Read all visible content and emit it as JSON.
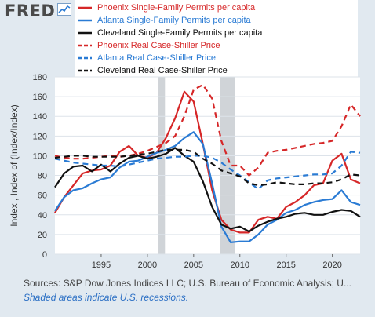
{
  "brand": {
    "logo_text": "FRED"
  },
  "footer": {
    "sources": "Sources: S&P Dow Jones Indices LLC; U.S. Bureau of Economic Analysis; U...",
    "note": "Shaded areas indicate U.S. recessions."
  },
  "colors": {
    "phoenix": "#d62728",
    "atlanta": "#2a7bd4",
    "cleveland": "#111111",
    "recession": "#d0d4d8"
  },
  "chart_data": {
    "type": "line",
    "ylabel": "Index , Index of (Index/Index)",
    "xlabel": "",
    "ylim": [
      0,
      180
    ],
    "xlim": [
      1990,
      2023
    ],
    "yticks": [
      0,
      20,
      40,
      60,
      80,
      100,
      120,
      140,
      160,
      180
    ],
    "xticks": [
      1995,
      2000,
      2005,
      2010,
      2015,
      2020
    ],
    "grid": true,
    "recessions": [
      [
        2001.2,
        2001.9
      ],
      [
        2007.9,
        2009.5
      ]
    ],
    "series": [
      {
        "name": "Phoenix Single-Family Permits per capita",
        "color": "#d62728",
        "dash": "solid",
        "x": [
          1990,
          1991,
          1992,
          1993,
          1994,
          1995,
          1996,
          1997,
          1998,
          1999,
          2000,
          2001,
          2002,
          2003,
          2004,
          2005,
          2006,
          2007,
          2008,
          2009,
          2010,
          2011,
          2012,
          2013,
          2014,
          2015,
          2016,
          2017,
          2018,
          2019,
          2020,
          2021,
          2022,
          2023
        ],
        "y": [
          42,
          58,
          70,
          82,
          85,
          86,
          90,
          104,
          110,
          100,
          98,
          103,
          118,
          138,
          165,
          155,
          112,
          65,
          35,
          25,
          22,
          22,
          35,
          38,
          36,
          48,
          53,
          60,
          70,
          72,
          95,
          102,
          76,
          72
        ]
      },
      {
        "name": "Atlanta Single-Family Permits per capita",
        "color": "#2a7bd4",
        "dash": "solid",
        "x": [
          1990,
          1991,
          1992,
          1993,
          1994,
          1995,
          1996,
          1997,
          1998,
          1999,
          2000,
          2001,
          2002,
          2003,
          2004,
          2005,
          2006,
          2007,
          2008,
          2009,
          2010,
          2011,
          2012,
          2013,
          2014,
          2015,
          2016,
          2017,
          2018,
          2019,
          2020,
          2021,
          2022,
          2023
        ],
        "y": [
          44,
          58,
          65,
          67,
          72,
          76,
          78,
          88,
          94,
          95,
          99,
          103,
          106,
          110,
          118,
          124,
          112,
          72,
          28,
          12,
          13,
          13,
          20,
          30,
          35,
          42,
          45,
          50,
          53,
          55,
          56,
          65,
          53,
          50
        ]
      },
      {
        "name": "Cleveland Single-Family Permits per capita",
        "color": "#111111",
        "dash": "solid",
        "x": [
          1990,
          1991,
          1992,
          1993,
          1994,
          1995,
          1996,
          1997,
          1998,
          1999,
          2000,
          2001,
          2002,
          2003,
          2004,
          2005,
          2006,
          2007,
          2008,
          2009,
          2010,
          2011,
          2012,
          2013,
          2014,
          2015,
          2016,
          2017,
          2018,
          2019,
          2020,
          2021,
          2022,
          2023
        ],
        "y": [
          68,
          82,
          89,
          90,
          84,
          91,
          84,
          92,
          98,
          100,
          97,
          99,
          102,
          108,
          100,
          94,
          74,
          48,
          30,
          26,
          28,
          23,
          29,
          33,
          36,
          38,
          41,
          42,
          40,
          40,
          43,
          45,
          44,
          38
        ]
      },
      {
        "name": "Phoenix Real Case-Shiller Price",
        "color": "#d62728",
        "dash": "dashed",
        "x": [
          1990,
          1991,
          1992,
          1993,
          1994,
          1995,
          1996,
          1997,
          1998,
          1999,
          2000,
          2001,
          2002,
          2003,
          2004,
          2005,
          2006,
          2007,
          2008,
          2009,
          2010,
          2011,
          2012,
          2013,
          2014,
          2015,
          2016,
          2017,
          2018,
          2019,
          2020,
          2021,
          2022,
          2023
        ],
        "y": [
          100,
          98,
          97,
          97,
          98,
          99,
          100,
          99,
          100,
          102,
          105,
          109,
          113,
          120,
          140,
          167,
          172,
          158,
          115,
          90,
          90,
          80,
          88,
          103,
          105,
          106,
          108,
          110,
          112,
          113,
          115,
          130,
          152,
          140
        ]
      },
      {
        "name": "Atlanta Real Case-Shiller Price",
        "color": "#2a7bd4",
        "dash": "dashed",
        "x": [
          1990,
          1991,
          1992,
          1993,
          1994,
          1995,
          1996,
          1997,
          1998,
          1999,
          2000,
          2001,
          2002,
          2003,
          2004,
          2005,
          2006,
          2007,
          2008,
          2009,
          2010,
          2011,
          2012,
          2013,
          2014,
          2015,
          2016,
          2017,
          2018,
          2019,
          2020,
          2021,
          2022,
          2023
        ],
        "y": [
          97,
          95,
          93,
          92,
          91,
          90,
          90,
          89,
          91,
          93,
          95,
          97,
          98,
          99,
          99,
          100,
          100,
          98,
          93,
          86,
          80,
          73,
          66,
          75,
          77,
          78,
          79,
          80,
          81,
          81,
          82,
          90,
          104,
          103
        ]
      },
      {
        "name": "Cleveland Real Case-Shiller Price",
        "color": "#111111",
        "dash": "dashed",
        "x": [
          1990,
          1991,
          1992,
          1993,
          1994,
          1995,
          1996,
          1997,
          1998,
          1999,
          2000,
          2001,
          2002,
          2003,
          2004,
          2005,
          2006,
          2007,
          2008,
          2009,
          2010,
          2011,
          2012,
          2013,
          2014,
          2015,
          2016,
          2017,
          2018,
          2019,
          2020,
          2021,
          2022,
          2023
        ],
        "y": [
          98,
          99,
          100,
          100,
          99,
          99,
          99,
          99,
          100,
          101,
          102,
          104,
          106,
          106,
          106,
          104,
          97,
          92,
          85,
          82,
          79,
          72,
          70,
          71,
          73,
          72,
          71,
          71,
          72,
          72,
          73,
          76,
          81,
          80
        ]
      }
    ]
  }
}
